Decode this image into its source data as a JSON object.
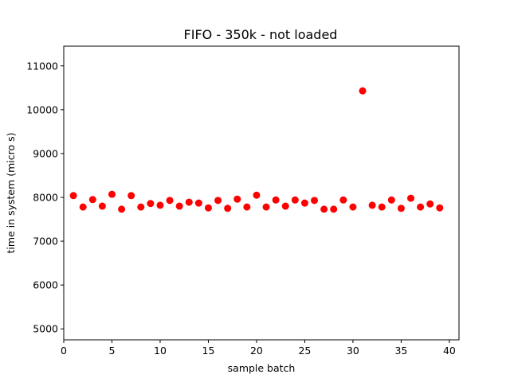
{
  "chart_data": {
    "type": "scatter",
    "title": "FIFO - 350k - not loaded",
    "xlabel": "sample batch",
    "ylabel": "time in system (micro s)",
    "xlim": [
      0,
      41
    ],
    "ylim": [
      4750,
      11450
    ],
    "xticks": [
      0,
      5,
      10,
      15,
      20,
      25,
      30,
      35,
      40
    ],
    "yticks": [
      5000,
      6000,
      7000,
      8000,
      9000,
      10000,
      11000
    ],
    "grid": false,
    "marker_color": "#ff0000",
    "series": [
      {
        "x": [
          1,
          2,
          3,
          4,
          5,
          6,
          7,
          8,
          9,
          10,
          11,
          12,
          13,
          14,
          15,
          16,
          17,
          18,
          19,
          20,
          21,
          22,
          23,
          24,
          25,
          26,
          27,
          28,
          29,
          30,
          31,
          32,
          33,
          34,
          35,
          36,
          37,
          38,
          39
        ],
        "y": [
          8040,
          7780,
          7950,
          7800,
          8070,
          7730,
          8040,
          7780,
          7860,
          7820,
          7930,
          7800,
          7890,
          7870,
          7760,
          7930,
          7750,
          7960,
          7780,
          8050,
          7780,
          7940,
          7800,
          7940,
          7870,
          7930,
          7730,
          7730,
          7940,
          7780,
          10430,
          7820,
          7780,
          7940,
          7750,
          7980,
          7780,
          7850,
          7760
        ]
      }
    ]
  }
}
